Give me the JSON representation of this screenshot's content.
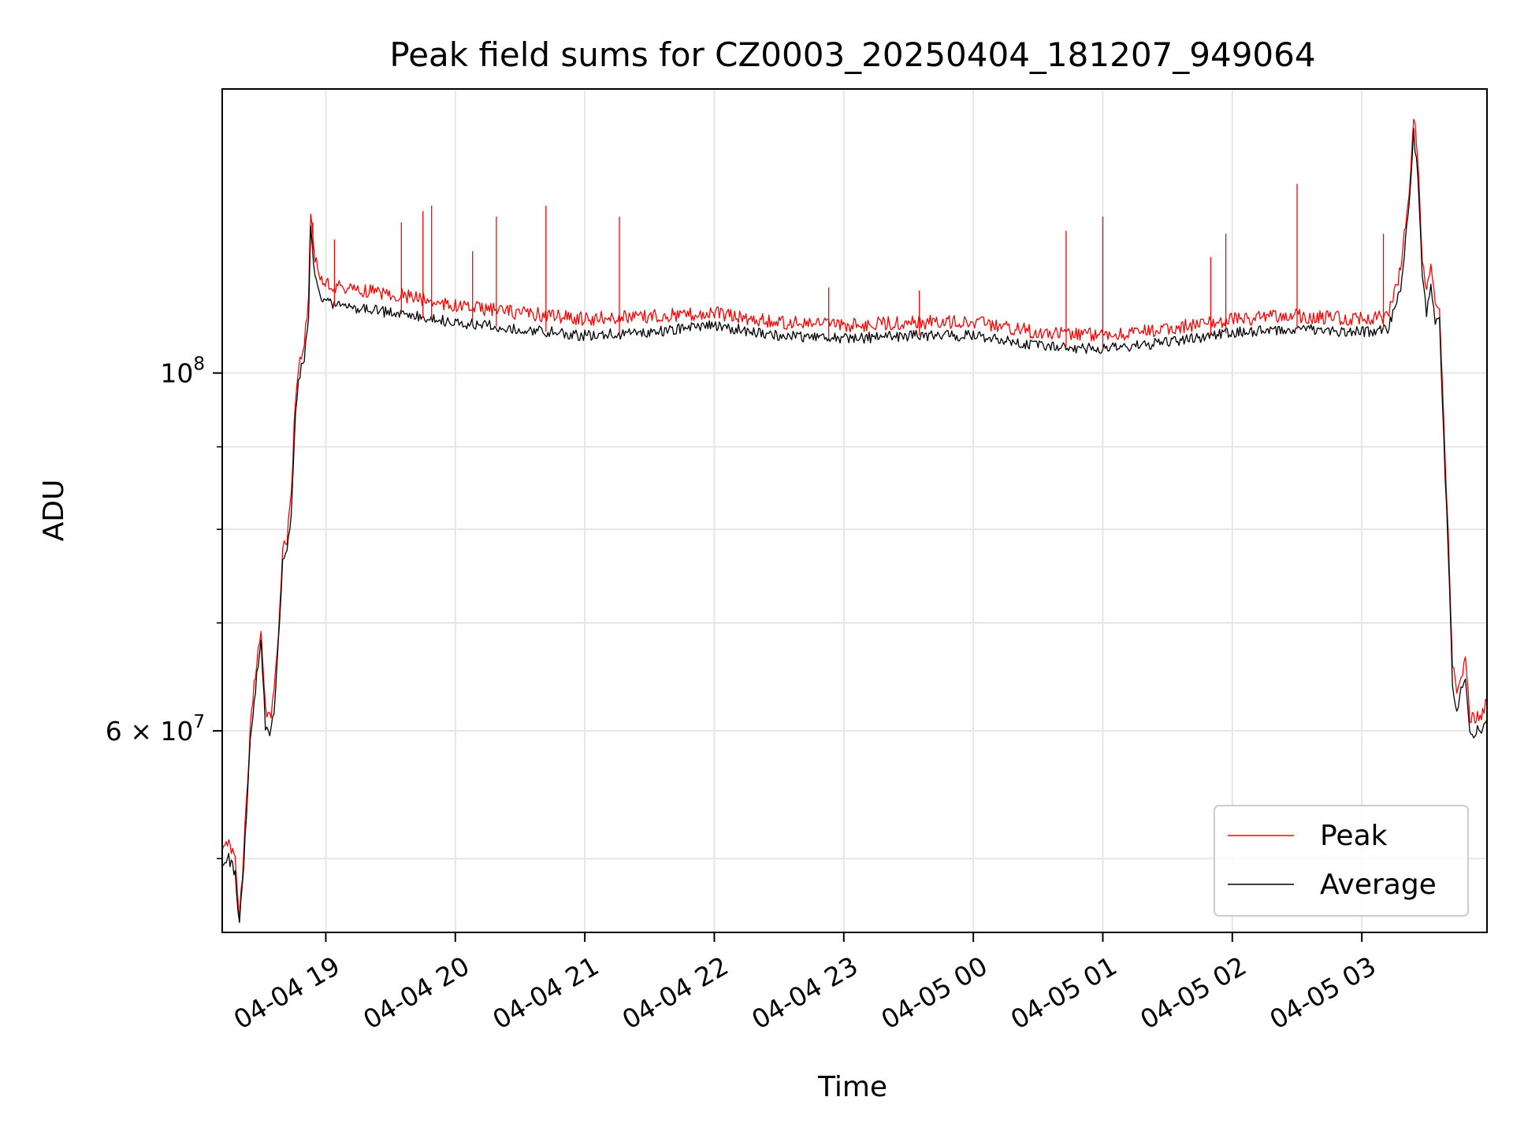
{
  "chart_data": {
    "type": "line",
    "title": "Peak field sums for CZ0003_20250404_181207_949064",
    "xlabel": "Time",
    "ylabel": "ADU",
    "x_range": [
      "2025-04-04 18:12",
      "2025-04-05 03:58"
    ],
    "ylim": [
      45000000,
      150000000
    ],
    "yscale": "log",
    "grid": true,
    "legend_position": "lower right",
    "x_ticks": [
      {
        "time": "2025-04-04 19:00",
        "label": "04-04 19"
      },
      {
        "time": "2025-04-04 20:00",
        "label": "04-04 20"
      },
      {
        "time": "2025-04-04 21:00",
        "label": "04-04 21"
      },
      {
        "time": "2025-04-04 22:00",
        "label": "04-04 22"
      },
      {
        "time": "2025-04-04 23:00",
        "label": "04-04 23"
      },
      {
        "time": "2025-04-05 00:00",
        "label": "04-05 00"
      },
      {
        "time": "2025-04-05 01:00",
        "label": "04-05 01"
      },
      {
        "time": "2025-04-05 02:00",
        "label": "04-05 02"
      },
      {
        "time": "2025-04-05 03:00",
        "label": "04-05 03"
      }
    ],
    "y_major_ticks": [
      {
        "value": 60000000,
        "base": "6 × 10",
        "exp": "7"
      },
      {
        "value": 100000000,
        "base": "10",
        "exp": "8"
      }
    ],
    "y_minor_ticks": [
      50000000,
      70000000,
      80000000,
      90000000
    ],
    "series": [
      {
        "name": "Peak",
        "color": "#ff0000",
        "points": [
          [
            "2025-04-04 18:12",
            50500000
          ],
          [
            "2025-04-04 18:15",
            51000000
          ],
          [
            "2025-04-04 18:18",
            50000000
          ],
          [
            "2025-04-04 18:20",
            46000000
          ],
          [
            "2025-04-04 18:22",
            50500000
          ],
          [
            "2025-04-04 18:25",
            60000000
          ],
          [
            "2025-04-04 18:28",
            66500000
          ],
          [
            "2025-04-04 18:30",
            69000000
          ],
          [
            "2025-04-04 18:32",
            62000000
          ],
          [
            "2025-04-04 18:34",
            61000000
          ],
          [
            "2025-04-04 18:36",
            63000000
          ],
          [
            "2025-04-04 18:38",
            69000000
          ],
          [
            "2025-04-04 18:40",
            78000000
          ],
          [
            "2025-04-04 18:42",
            79000000
          ],
          [
            "2025-04-04 18:44",
            84000000
          ],
          [
            "2025-04-04 18:46",
            97000000
          ],
          [
            "2025-04-04 18:48",
            102000000
          ],
          [
            "2025-04-04 18:50",
            105000000
          ],
          [
            "2025-04-04 18:52",
            111000000
          ],
          [
            "2025-04-04 18:53",
            126000000
          ],
          [
            "2025-04-04 18:55",
            118000000
          ],
          [
            "2025-04-04 18:58",
            114000000
          ],
          [
            "2025-04-04 19:05",
            113000000
          ],
          [
            "2025-04-04 19:20",
            112500000
          ],
          [
            "2025-04-04 19:40",
            111500000
          ],
          [
            "2025-04-04 20:00",
            110000000
          ],
          [
            "2025-04-04 20:30",
            109000000
          ],
          [
            "2025-04-04 21:00",
            108000000
          ],
          [
            "2025-04-04 21:30",
            108500000
          ],
          [
            "2025-04-04 22:00",
            109000000
          ],
          [
            "2025-04-04 22:30",
            107500000
          ],
          [
            "2025-04-04 23:00",
            107000000
          ],
          [
            "2025-04-04 23:30",
            107500000
          ],
          [
            "2025-04-05 00:00",
            107500000
          ],
          [
            "2025-04-05 00:30",
            106000000
          ],
          [
            "2025-04-05 01:00",
            105500000
          ],
          [
            "2025-04-05 01:30",
            106500000
          ],
          [
            "2025-04-05 02:00",
            108000000
          ],
          [
            "2025-04-05 02:30",
            108500000
          ],
          [
            "2025-04-05 03:00",
            108000000
          ],
          [
            "2025-04-05 03:12",
            108500000
          ],
          [
            "2025-04-05 03:18",
            116000000
          ],
          [
            "2025-04-05 03:22",
            130000000
          ],
          [
            "2025-04-05 03:24",
            145000000
          ],
          [
            "2025-04-05 03:26",
            136000000
          ],
          [
            "2025-04-05 03:28",
            118000000
          ],
          [
            "2025-04-05 03:30",
            112000000
          ],
          [
            "2025-04-05 03:32",
            117000000
          ],
          [
            "2025-04-05 03:34",
            110000000
          ],
          [
            "2025-04-05 03:36",
            110000000
          ],
          [
            "2025-04-05 03:38",
            93000000
          ],
          [
            "2025-04-05 03:40",
            80000000
          ],
          [
            "2025-04-05 03:42",
            66000000
          ],
          [
            "2025-04-05 03:44",
            63000000
          ],
          [
            "2025-04-05 03:46",
            65000000
          ],
          [
            "2025-04-05 03:48",
            66500000
          ],
          [
            "2025-04-05 03:50",
            61000000
          ],
          [
            "2025-04-05 03:53",
            61000000
          ],
          [
            "2025-04-05 03:56",
            61500000
          ],
          [
            "2025-04-05 03:58",
            62500000
          ]
        ]
      },
      {
        "name": "Average",
        "color": "#000000",
        "points": [
          [
            "2025-04-04 18:12",
            49500000
          ],
          [
            "2025-04-04 18:15",
            50000000
          ],
          [
            "2025-04-04 18:18",
            49000000
          ],
          [
            "2025-04-04 18:20",
            45500000
          ],
          [
            "2025-04-04 18:22",
            49500000
          ],
          [
            "2025-04-04 18:25",
            59000000
          ],
          [
            "2025-04-04 18:28",
            65000000
          ],
          [
            "2025-04-04 18:30",
            68000000
          ],
          [
            "2025-04-04 18:32",
            60500000
          ],
          [
            "2025-04-04 18:34",
            60000000
          ],
          [
            "2025-04-04 18:36",
            61500000
          ],
          [
            "2025-04-04 18:38",
            68000000
          ],
          [
            "2025-04-04 18:40",
            76500000
          ],
          [
            "2025-04-04 18:42",
            77500000
          ],
          [
            "2025-04-04 18:44",
            82000000
          ],
          [
            "2025-04-04 18:46",
            95000000
          ],
          [
            "2025-04-04 18:48",
            100000000
          ],
          [
            "2025-04-04 18:50",
            102000000
          ],
          [
            "2025-04-04 18:52",
            108000000
          ],
          [
            "2025-04-04 18:53",
            123000000
          ],
          [
            "2025-04-04 18:55",
            115000000
          ],
          [
            "2025-04-04 18:58",
            111000000
          ],
          [
            "2025-04-04 19:05",
            110000000
          ],
          [
            "2025-04-04 19:20",
            109500000
          ],
          [
            "2025-04-04 19:40",
            108500000
          ],
          [
            "2025-04-04 20:00",
            107500000
          ],
          [
            "2025-04-04 20:30",
            106500000
          ],
          [
            "2025-04-04 21:00",
            105500000
          ],
          [
            "2025-04-04 21:30",
            106000000
          ],
          [
            "2025-04-04 22:00",
            107000000
          ],
          [
            "2025-04-04 22:30",
            105500000
          ],
          [
            "2025-04-04 23:00",
            105000000
          ],
          [
            "2025-04-04 23:30",
            105500000
          ],
          [
            "2025-04-05 00:00",
            105500000
          ],
          [
            "2025-04-05 00:30",
            104000000
          ],
          [
            "2025-04-05 01:00",
            103500000
          ],
          [
            "2025-04-05 01:30",
            104500000
          ],
          [
            "2025-04-05 02:00",
            106000000
          ],
          [
            "2025-04-05 02:30",
            106500000
          ],
          [
            "2025-04-05 03:00",
            106000000
          ],
          [
            "2025-04-05 03:12",
            106500000
          ],
          [
            "2025-04-05 03:18",
            113000000
          ],
          [
            "2025-04-05 03:22",
            127000000
          ],
          [
            "2025-04-05 03:24",
            141000000
          ],
          [
            "2025-04-05 03:26",
            132000000
          ],
          [
            "2025-04-05 03:28",
            115000000
          ],
          [
            "2025-04-05 03:30",
            109000000
          ],
          [
            "2025-04-05 03:32",
            114000000
          ],
          [
            "2025-04-05 03:34",
            107500000
          ],
          [
            "2025-04-05 03:36",
            107500000
          ],
          [
            "2025-04-05 03:38",
            91000000
          ],
          [
            "2025-04-05 03:40",
            78000000
          ],
          [
            "2025-04-05 03:42",
            64500000
          ],
          [
            "2025-04-05 03:44",
            61500000
          ],
          [
            "2025-04-05 03:46",
            63500000
          ],
          [
            "2025-04-05 03:48",
            65000000
          ],
          [
            "2025-04-05 03:50",
            59500000
          ],
          [
            "2025-04-05 03:53",
            60000000
          ],
          [
            "2025-04-05 03:56",
            60000000
          ],
          [
            "2025-04-05 03:58",
            61000000
          ]
        ]
      }
    ],
    "spikes": [
      [
        "2025-04-04 18:54",
        124000000
      ],
      [
        "2025-04-04 19:04",
        121000000
      ],
      [
        "2025-04-04 19:35",
        124000000
      ],
      [
        "2025-04-04 19:45",
        126000000
      ],
      [
        "2025-04-04 19:49",
        127000000
      ],
      [
        "2025-04-04 20:08",
        119000000
      ],
      [
        "2025-04-04 20:19",
        125000000
      ],
      [
        "2025-04-04 20:42",
        127000000
      ],
      [
        "2025-04-04 21:16",
        125000000
      ],
      [
        "2025-04-04 22:53",
        113000000
      ],
      [
        "2025-04-04 23:35",
        112500000
      ],
      [
        "2025-04-05 00:43",
        122500000
      ],
      [
        "2025-04-05 01:00",
        125000000
      ],
      [
        "2025-04-05 01:50",
        118000000
      ],
      [
        "2025-04-05 01:57",
        122000000
      ],
      [
        "2025-04-05 02:30",
        131000000
      ],
      [
        "2025-04-05 03:10",
        122000000
      ]
    ]
  }
}
